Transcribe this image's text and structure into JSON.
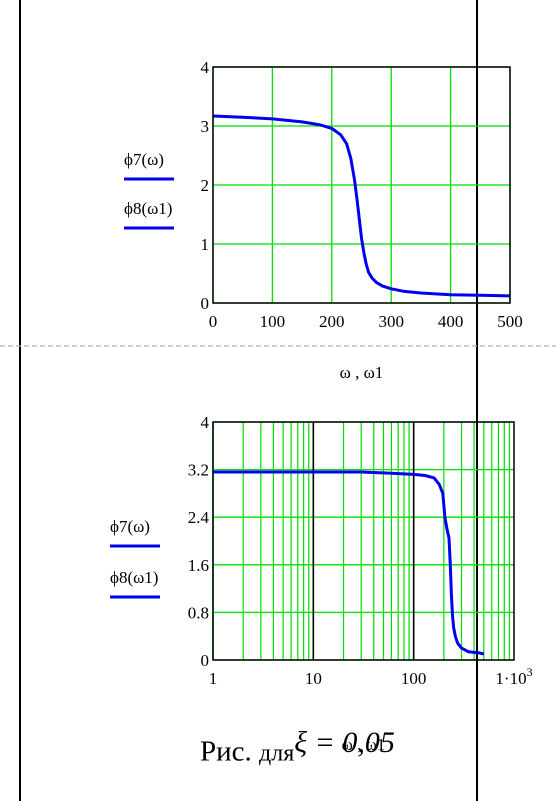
{
  "caption": {
    "prefix": "Рис.",
    "word": "для",
    "formula": "ξ = 0,05"
  },
  "colors": {
    "grid": "#00dd00",
    "curve": "#0000ee",
    "frame": "#000000",
    "legend_underline": "#0000ee",
    "divider": "#b0b0b0"
  },
  "chart_data": [
    {
      "type": "line",
      "scale": "linear",
      "xlim": [
        0,
        500
      ],
      "ylim": [
        0,
        4
      ],
      "xticks": [
        0,
        100,
        200,
        300,
        400,
        500
      ],
      "xtick_labels": [
        "0",
        "100",
        "200",
        "300",
        "400",
        "500"
      ],
      "yticks": [
        0,
        1,
        2,
        3,
        4
      ],
      "ytick_labels": [
        "0",
        "1",
        "2",
        "3",
        "4"
      ],
      "xlabel": "ω , ω1",
      "legend": [
        "ϕ7(ω)",
        "ϕ8(ω1)"
      ],
      "grid": true,
      "series": [
        {
          "name": "ϕ7(ω)",
          "x": [
            0,
            50,
            100,
            150,
            180,
            200,
            215,
            225,
            232,
            238,
            242,
            246,
            250,
            254,
            258,
            262,
            268,
            275,
            285,
            300,
            320,
            350,
            400,
            450,
            500
          ],
          "y": [
            3.17,
            3.15,
            3.12,
            3.07,
            3.02,
            2.96,
            2.85,
            2.7,
            2.45,
            2.1,
            1.8,
            1.45,
            1.1,
            0.85,
            0.65,
            0.52,
            0.42,
            0.35,
            0.29,
            0.24,
            0.2,
            0.17,
            0.14,
            0.13,
            0.12
          ]
        }
      ]
    },
    {
      "type": "line",
      "scale": "log-x",
      "xlim": [
        1,
        1000
      ],
      "ylim": [
        0,
        4
      ],
      "xticks": [
        1,
        10,
        100,
        1000
      ],
      "xtick_labels": [
        "1",
        "10",
        "100",
        "1·10³"
      ],
      "yticks": [
        0,
        0.8,
        1.6,
        2.4,
        3.2,
        4
      ],
      "ytick_labels": [
        "0",
        "0.8",
        "1.6",
        "2.4",
        "3.2",
        "4"
      ],
      "xlabel": "ω , ω1",
      "legend": [
        "ϕ7(ω)",
        "ϕ8(ω1)"
      ],
      "grid": true,
      "series": [
        {
          "name": "ϕ7(ω)",
          "x": [
            1,
            5,
            10,
            30,
            60,
            100,
            130,
            160,
            180,
            195,
            205,
            215,
            225,
            232,
            238,
            244,
            250,
            260,
            275,
            300,
            350,
            450,
            500
          ],
          "y": [
            3.16,
            3.16,
            3.16,
            3.16,
            3.14,
            3.12,
            3.1,
            3.06,
            2.95,
            2.8,
            2.4,
            2.2,
            2.05,
            1.6,
            1.1,
            0.75,
            0.55,
            0.4,
            0.28,
            0.2,
            0.14,
            0.12,
            0.1
          ]
        }
      ]
    }
  ]
}
